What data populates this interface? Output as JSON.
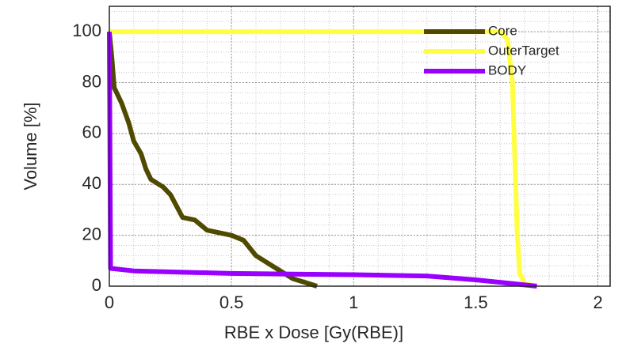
{
  "chart_data": {
    "type": "line",
    "xlabel": "RBE x Dose [Gy(RBE)]",
    "ylabel": "Volume [%]",
    "xlim": [
      0,
      2.05
    ],
    "ylim": [
      0,
      110
    ],
    "xticks": [
      0,
      0.5,
      1,
      1.5,
      2
    ],
    "yticks": [
      0,
      20,
      40,
      60,
      80,
      100
    ],
    "grid": true,
    "minor_grid": true,
    "legend": "northeast",
    "series": [
      {
        "name": "Core",
        "color": "#4f4a00",
        "x": [
          0,
          0.01,
          0.02,
          0.05,
          0.08,
          0.1,
          0.13,
          0.15,
          0.17,
          0.22,
          0.25,
          0.3,
          0.35,
          0.4,
          0.45,
          0.5,
          0.55,
          0.6,
          0.65,
          0.7,
          0.75,
          0.8,
          0.85
        ],
        "values": [
          100,
          90,
          78,
          72,
          64,
          57,
          52,
          46,
          42,
          39,
          36,
          27,
          26,
          22,
          21,
          20,
          18,
          12,
          9,
          6,
          3,
          1.5,
          0
        ]
      },
      {
        "name": "OuterTarget",
        "color": "#ffff40",
        "x": [
          0,
          1.6,
          1.63,
          1.65,
          1.66,
          1.67,
          1.68,
          1.7,
          1.75
        ],
        "values": [
          100,
          100,
          97,
          80,
          50,
          20,
          5,
          1,
          0
        ]
      },
      {
        "name": "BODY",
        "color": "#9900ff",
        "x": [
          0,
          0.005,
          0.1,
          0.5,
          1,
          1.3,
          1.5,
          1.65,
          1.75
        ],
        "values": [
          100,
          7,
          6,
          5,
          4.5,
          4,
          2.5,
          1,
          0
        ]
      }
    ]
  }
}
